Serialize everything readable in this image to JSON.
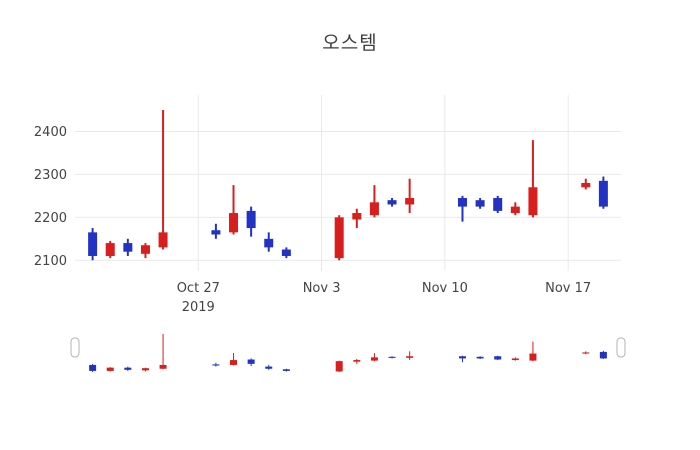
{
  "title": "오스템",
  "chart_data": {
    "type": "candlestick",
    "title": "오스템",
    "increasing_color": "#d91e1e",
    "decreasing_color": "#2233c4",
    "grid_color": "#e9e9e9",
    "text_color": "#444444",
    "background": "#ffffff",
    "grid": true,
    "rangeslider": true,
    "ylim": [
      2075,
      2485
    ],
    "xlim": [
      "2019-10-20",
      "2019-11-20"
    ],
    "y_ticks": [
      2100,
      2200,
      2300,
      2400
    ],
    "x_ticks": [
      {
        "date": "2019-10-27",
        "label": "Oct 27",
        "sublabel": "2019"
      },
      {
        "date": "2019-11-03",
        "label": "Nov 3"
      },
      {
        "date": "2019-11-10",
        "label": "Nov 10"
      },
      {
        "date": "2019-11-17",
        "label": "Nov 17"
      }
    ],
    "candles": [
      {
        "date": "2019-10-21",
        "open": 2165,
        "high": 2175,
        "low": 2100,
        "close": 2110
      },
      {
        "date": "2019-10-22",
        "open": 2110,
        "high": 2145,
        "low": 2105,
        "close": 2140
      },
      {
        "date": "2019-10-23",
        "open": 2140,
        "high": 2150,
        "low": 2110,
        "close": 2120
      },
      {
        "date": "2019-10-24",
        "open": 2115,
        "high": 2140,
        "low": 2105,
        "close": 2135
      },
      {
        "date": "2019-10-25",
        "open": 2130,
        "high": 2450,
        "low": 2125,
        "close": 2165
      },
      {
        "date": "2019-10-28",
        "open": 2170,
        "high": 2185,
        "low": 2150,
        "close": 2160
      },
      {
        "date": "2019-10-29",
        "open": 2165,
        "high": 2275,
        "low": 2160,
        "close": 2210
      },
      {
        "date": "2019-10-30",
        "open": 2215,
        "high": 2225,
        "low": 2155,
        "close": 2175
      },
      {
        "date": "2019-10-31",
        "open": 2150,
        "high": 2165,
        "low": 2120,
        "close": 2130
      },
      {
        "date": "2019-11-01",
        "open": 2125,
        "high": 2130,
        "low": 2105,
        "close": 2110
      },
      {
        "date": "2019-11-04",
        "open": 2105,
        "high": 2205,
        "low": 2100,
        "close": 2200
      },
      {
        "date": "2019-11-05",
        "open": 2195,
        "high": 2220,
        "low": 2175,
        "close": 2210
      },
      {
        "date": "2019-11-06",
        "open": 2205,
        "high": 2275,
        "low": 2200,
        "close": 2235
      },
      {
        "date": "2019-11-07",
        "open": 2240,
        "high": 2245,
        "low": 2225,
        "close": 2230
      },
      {
        "date": "2019-11-08",
        "open": 2230,
        "high": 2290,
        "low": 2210,
        "close": 2245
      },
      {
        "date": "2019-11-11",
        "open": 2245,
        "high": 2250,
        "low": 2190,
        "close": 2225
      },
      {
        "date": "2019-11-12",
        "open": 2240,
        "high": 2245,
        "low": 2220,
        "close": 2225
      },
      {
        "date": "2019-11-13",
        "open": 2245,
        "high": 2250,
        "low": 2210,
        "close": 2215
      },
      {
        "date": "2019-11-14",
        "open": 2210,
        "high": 2235,
        "low": 2205,
        "close": 2225
      },
      {
        "date": "2019-11-15",
        "open": 2205,
        "high": 2380,
        "low": 2200,
        "close": 2270
      },
      {
        "date": "2019-11-18",
        "open": 2270,
        "high": 2290,
        "low": 2265,
        "close": 2280
      },
      {
        "date": "2019-11-19",
        "open": 2285,
        "high": 2295,
        "low": 2220,
        "close": 2225
      }
    ]
  }
}
